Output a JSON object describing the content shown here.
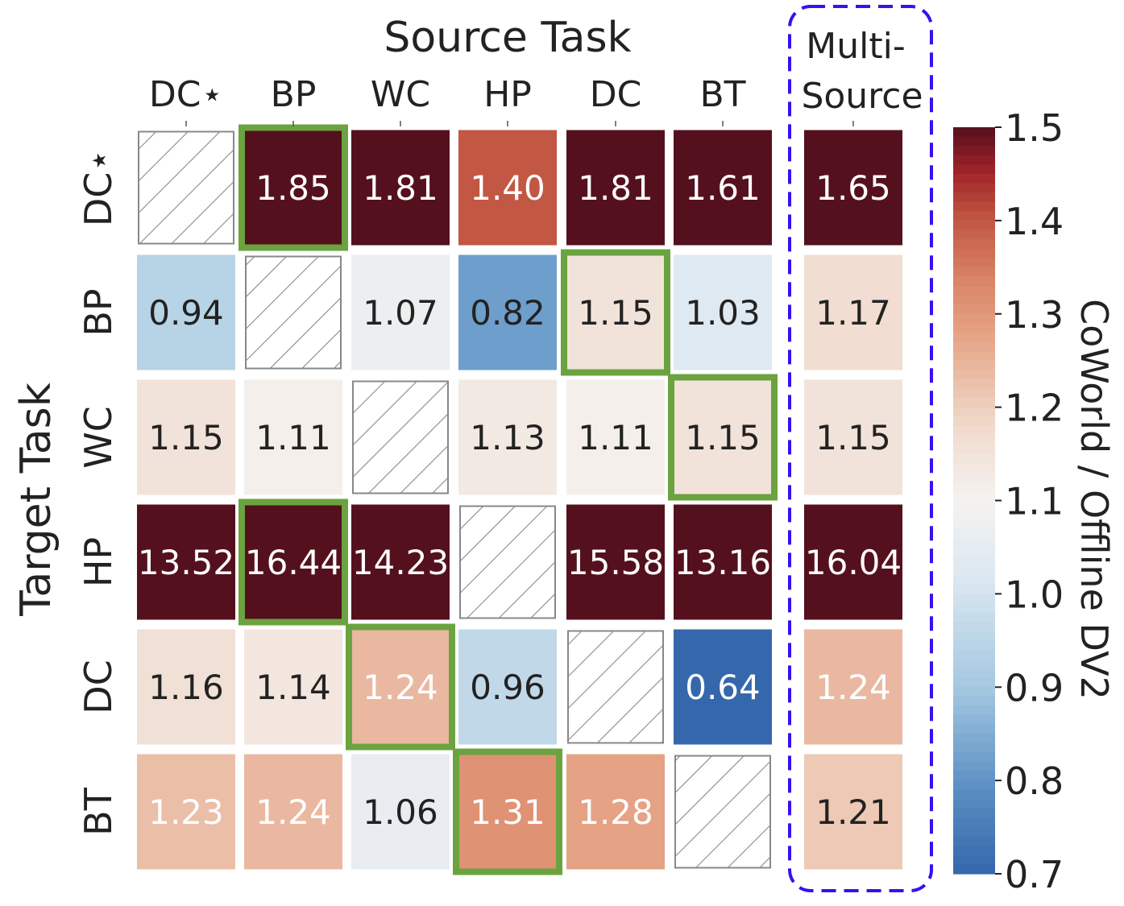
{
  "chart_data": {
    "type": "heatmap",
    "title": "Source Task",
    "xlabel": "Source Task",
    "ylabel": "Target Task",
    "colorbar_label": "CoWorld / Offline DV2",
    "x_categories": [
      "DC⋆",
      "BP",
      "WC",
      "HP",
      "DC",
      "BT"
    ],
    "multi_source_label_line1": "Multi-",
    "multi_source_label_line2": "Source",
    "y_categories": [
      "DC⋆",
      "BP",
      "WC",
      "HP",
      "DC",
      "BT"
    ],
    "values": [
      [
        null,
        1.85,
        1.81,
        1.4,
        1.81,
        1.61
      ],
      [
        0.94,
        null,
        1.07,
        0.82,
        1.15,
        1.03
      ],
      [
        1.15,
        1.11,
        null,
        1.13,
        1.11,
        1.15
      ],
      [
        13.52,
        16.44,
        14.23,
        null,
        15.58,
        13.16
      ],
      [
        1.16,
        1.14,
        1.24,
        0.96,
        null,
        0.64
      ],
      [
        1.23,
        1.24,
        1.06,
        1.31,
        1.28,
        null
      ]
    ],
    "value_labels": [
      [
        "",
        "1.85",
        "1.81",
        "1.40",
        "1.81",
        "1.61"
      ],
      [
        "0.94",
        "",
        "1.07",
        "0.82",
        "1.15",
        "1.03"
      ],
      [
        "1.15",
        "1.11",
        "",
        "1.13",
        "1.11",
        "1.15"
      ],
      [
        "13.52",
        "16.44",
        "14.23",
        "",
        "15.58",
        "13.16"
      ],
      [
        "1.16",
        "1.14",
        "1.24",
        "0.96",
        "",
        "0.64"
      ],
      [
        "1.23",
        "1.24",
        "1.06",
        "1.31",
        "1.28",
        ""
      ]
    ],
    "multi_source_values": [
      1.65,
      1.17,
      1.15,
      16.04,
      1.24,
      1.21
    ],
    "multi_source_labels": [
      "1.65",
      "1.17",
      "1.15",
      "16.04",
      "1.24",
      "1.21"
    ],
    "best_source_per_target": [
      1,
      4,
      5,
      1,
      2,
      3
    ],
    "color_range": [
      0.7,
      1.5
    ],
    "colorbar_ticks": [
      "1.5",
      "1.4",
      "1.3",
      "1.2",
      "1.1",
      "1.0",
      "0.9",
      "0.8",
      "0.7"
    ],
    "colormap": "RdBu_r",
    "highlight_color": "#6aa33f",
    "multi_source_box_color": "#3a0ff0",
    "hatch_color": "#888888"
  }
}
